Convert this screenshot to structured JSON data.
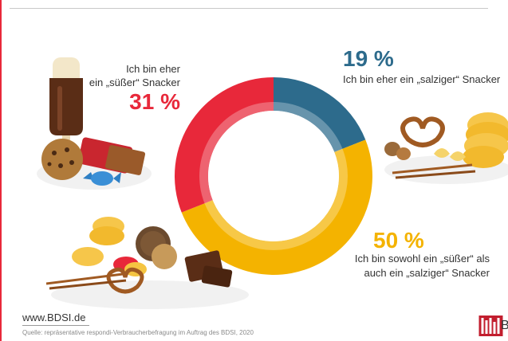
{
  "chart_data": {
    "type": "pie",
    "categories": [
      "Ich bin eher ein „süßer“ Snacker",
      "Ich bin eher ein „salziger“ Snacker",
      "Ich bin sowohl ein „süßer“ als auch ein „salziger“ Snacker"
    ],
    "values": [
      31,
      19,
      50
    ],
    "colors": [
      "#e8283a",
      "#2d6b8c",
      "#f4b300"
    ],
    "labels": [
      "31 %",
      "19 %",
      "50 %"
    ],
    "hole": true
  },
  "labels": {
    "sweet_line1": "Ich bin eher",
    "sweet_line2": "ein „süßer“ Snacker",
    "sweet_pct": "31 %",
    "salty_pct": "19 %",
    "salty_text": "Ich bin eher ein „salziger“ Snacker",
    "both_pct": "50 %",
    "both_line1": "Ich bin sowohl ein „süßer“ als",
    "both_line2": "auch ein „salziger“ Snacker"
  },
  "footer": {
    "url": "www.BDSI.de",
    "source": "Quelle: repräsentative respondi-Verbraucherbefragung im Auftrag des BDSI, 2020"
  },
  "logo": {
    "text": "B",
    "icon": "bdsi-logo-icon"
  },
  "icons": [
    "sweets-illustration-icon",
    "salty-snacks-illustration-icon",
    "mixed-snacks-illustration-icon"
  ]
}
